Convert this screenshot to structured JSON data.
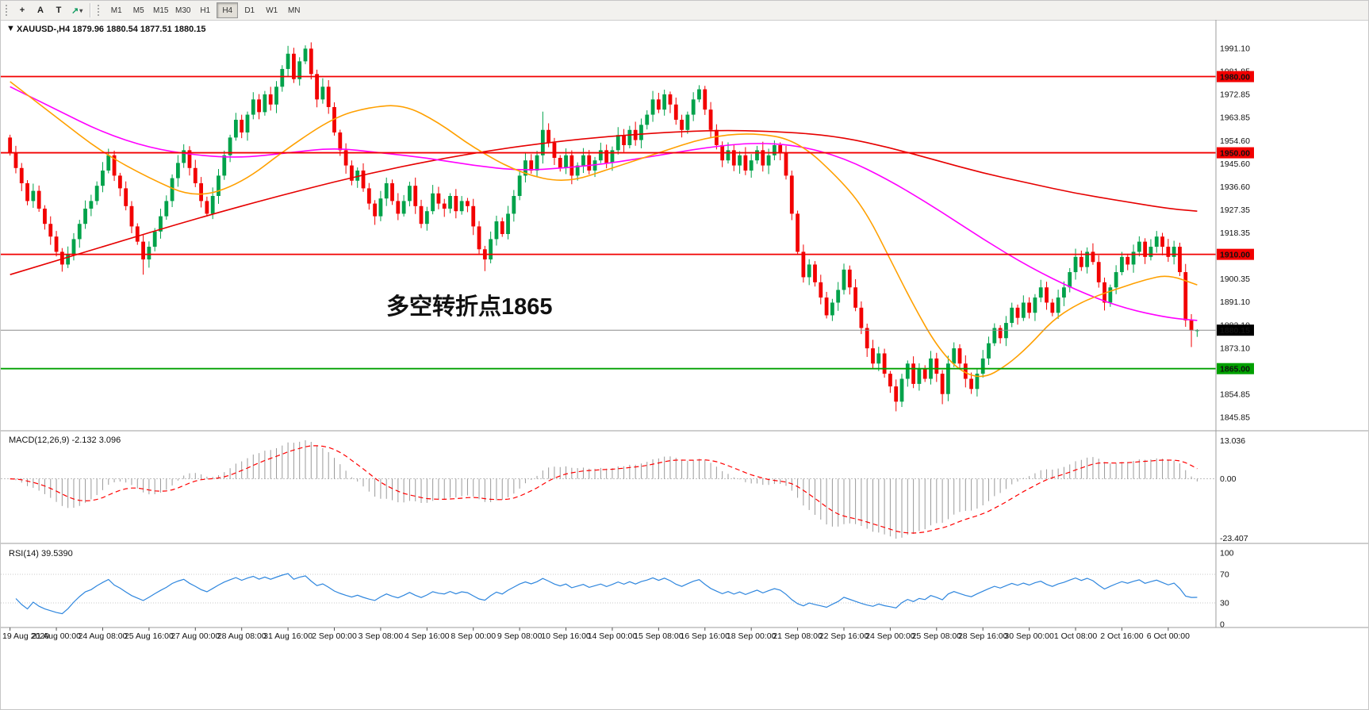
{
  "toolbar": {
    "buttons": [
      {
        "glyph": "+"
      },
      {
        "glyph": "A"
      },
      {
        "glyph": "T"
      },
      {
        "glyph": "↗"
      }
    ],
    "dropdown_caret": "▾",
    "timeframes": [
      {
        "label": "M1",
        "active": false
      },
      {
        "label": "M5",
        "active": false
      },
      {
        "label": "M15",
        "active": false
      },
      {
        "label": "M30",
        "active": false
      },
      {
        "label": "H1",
        "active": false
      },
      {
        "label": "H4",
        "active": true
      },
      {
        "label": "D1",
        "active": false
      },
      {
        "label": "W1",
        "active": false
      },
      {
        "label": "MN",
        "active": false
      }
    ]
  },
  "chart": {
    "collapse_arrow": "▼",
    "quote_line": "XAUUSD-,H4 1879.96 1880.54 1877.51 1880.15",
    "annotation": {
      "text": "多空转折点1865",
      "color": "#ff0000"
    },
    "levels": [
      {
        "price": 1980.0,
        "label": "1980.00",
        "color": "#f20000"
      },
      {
        "price": 1950.0,
        "label": "1950.00",
        "color": "#f20000"
      },
      {
        "price": 1910.0,
        "label": "1910.00",
        "color": "#f20000"
      },
      {
        "price": 1865.0,
        "label": "1865.00",
        "color": "#00a000"
      }
    ],
    "bid_line": {
      "price": 1880.15,
      "label": "1880.15",
      "line_color": "#8c8c8c",
      "tag_bg": "#000000",
      "tag_fg": "#ffffff"
    },
    "price_axis": {
      "ticks": [
        "1991.10",
        "1981.85",
        "1972.85",
        "1963.85",
        "1954.60",
        "1945.60",
        "1936.60",
        "1927.35",
        "1918.35",
        "1909.10",
        "1900.35",
        "1891.10",
        "1882.10",
        "1873.10",
        "1863.85",
        "1854.85",
        "1845.85"
      ]
    },
    "time_axis": {
      "labels": [
        "19 Aug 2020",
        "21 Aug 00:00",
        "24 Aug 08:00",
        "25 Aug 16:00",
        "27 Aug 00:00",
        "28 Aug 08:00",
        "31 Aug 16:00",
        "2 Sep 00:00",
        "3 Sep 08:00",
        "4 Sep 16:00",
        "8 Sep 00:00",
        "9 Sep 08:00",
        "10 Sep 16:00",
        "14 Sep 00:00",
        "15 Sep 08:00",
        "16 Sep 16:00",
        "18 Sep 00:00",
        "21 Sep 08:00",
        "22 Sep 16:00",
        "24 Sep 00:00",
        "25 Sep 08:00",
        "28 Sep 16:00",
        "30 Sep 00:00",
        "1 Oct 08:00",
        "2 Oct 16:00",
        "6 Oct 00:00"
      ]
    },
    "colors": {
      "up": "#00a24a",
      "down": "#f20000",
      "bid": "#8c8c8c"
    }
  },
  "chart_data": {
    "type": "candlestick",
    "symbol": "XAUUSD-",
    "timeframe": "H4",
    "ohlc_current": {
      "open": 1879.96,
      "high": 1880.54,
      "low": 1877.51,
      "close": 1880.15
    },
    "candles_per_time_label": 8,
    "first_open": 1956,
    "closes": [
      1950,
      1944,
      1938,
      1931,
      1935,
      1928,
      1922,
      1917,
      1911,
      1906,
      1910,
      1916,
      1922,
      1928,
      1931,
      1937,
      1943,
      1949,
      1941,
      1936,
      1929,
      1921,
      1915,
      1908,
      1913,
      1919,
      1925,
      1931,
      1940,
      1946,
      1951,
      1944,
      1938,
      1931,
      1926,
      1933,
      1941,
      1949,
      1956,
      1963,
      1958,
      1965,
      1971,
      1966,
      1973,
      1969,
      1976,
      1983,
      1989,
      1979,
      1986,
      1991,
      1981,
      1971,
      1976,
      1968,
      1958,
      1951,
      1945,
      1939,
      1943,
      1936,
      1930,
      1925,
      1932,
      1938,
      1931,
      1926,
      1931,
      1937,
      1929,
      1922,
      1927,
      1934,
      1930,
      1928,
      1933,
      1927,
      1931,
      1929,
      1921,
      1912,
      1908,
      1916,
      1923,
      1918,
      1926,
      1933,
      1941,
      1947,
      1943,
      1949,
      1959,
      1954,
      1948,
      1944,
      1949,
      1941,
      1945,
      1949,
      1943,
      1947,
      1951,
      1946,
      1951,
      1957,
      1953,
      1959,
      1955,
      1961,
      1965,
      1971,
      1967,
      1973,
      1969,
      1963,
      1959,
      1965,
      1971,
      1975,
      1967,
      1959,
      1953,
      1947,
      1951,
      1945,
      1949,
      1943,
      1947,
      1951,
      1945,
      1949,
      1953,
      1950,
      1941,
      1926,
      1911,
      1901,
      1906,
      1899,
      1893,
      1886,
      1891,
      1896,
      1904,
      1897,
      1889,
      1881,
      1873,
      1867,
      1871,
      1863,
      1858,
      1852,
      1861,
      1867,
      1859,
      1865,
      1861,
      1869,
      1863,
      1855,
      1867,
      1873,
      1867,
      1861,
      1857,
      1863,
      1869,
      1875,
      1881,
      1877,
      1883,
      1889,
      1885,
      1891,
      1887,
      1893,
      1897,
      1891,
      1887,
      1893,
      1897,
      1903,
      1909,
      1905,
      1911,
      1907,
      1899,
      1891,
      1897,
      1903,
      1909,
      1906,
      1911,
      1915,
      1909,
      1913,
      1917,
      1913,
      1909,
      1913,
      1903,
      1884,
      1880,
      1880.15
    ],
    "wicks": {
      "23": {
        "l": 1902
      },
      "51": {
        "h": 1992.3
      },
      "82": {
        "l": 1903.4
      },
      "92": {
        "h": 1966.2
      },
      "119": {
        "h": 1976.6
      },
      "153": {
        "l": 1848.2
      },
      "161": {
        "l": 1851
      },
      "204": {
        "l": 1873.5
      }
    },
    "moving_averages": [
      {
        "name": "ma-slow-red",
        "color": "#e60000",
        "points": [
          [
            0,
            1902
          ],
          [
            16,
            1913
          ],
          [
            32,
            1924
          ],
          [
            48,
            1934
          ],
          [
            64,
            1943
          ],
          [
            80,
            1950
          ],
          [
            96,
            1955
          ],
          [
            112,
            1958
          ],
          [
            124,
            1959
          ],
          [
            136,
            1958
          ],
          [
            144,
            1956
          ],
          [
            152,
            1952
          ],
          [
            160,
            1947
          ],
          [
            168,
            1942
          ],
          [
            176,
            1938
          ],
          [
            184,
            1934
          ],
          [
            192,
            1931
          ],
          [
            200,
            1928
          ],
          [
            205,
            1927
          ]
        ]
      },
      {
        "name": "ma-mid-magenta",
        "color": "#ff00ff",
        "points": [
          [
            0,
            1976
          ],
          [
            8,
            1967
          ],
          [
            16,
            1958
          ],
          [
            24,
            1952
          ],
          [
            32,
            1949
          ],
          [
            40,
            1948
          ],
          [
            48,
            1950
          ],
          [
            56,
            1952
          ],
          [
            64,
            1950
          ],
          [
            72,
            1948
          ],
          [
            80,
            1945
          ],
          [
            88,
            1943
          ],
          [
            96,
            1944
          ],
          [
            104,
            1946
          ],
          [
            112,
            1949
          ],
          [
            120,
            1952
          ],
          [
            128,
            1954
          ],
          [
            136,
            1953
          ],
          [
            144,
            1948
          ],
          [
            152,
            1939
          ],
          [
            160,
            1928
          ],
          [
            168,
            1916
          ],
          [
            176,
            1905
          ],
          [
            184,
            1896
          ],
          [
            192,
            1889
          ],
          [
            200,
            1885
          ],
          [
            205,
            1884
          ]
        ]
      },
      {
        "name": "ma-fast-orange",
        "color": "#ffa000",
        "points": [
          [
            0,
            1978
          ],
          [
            8,
            1964
          ],
          [
            16,
            1950
          ],
          [
            24,
            1940
          ],
          [
            32,
            1932
          ],
          [
            40,
            1938
          ],
          [
            48,
            1952
          ],
          [
            56,
            1964
          ],
          [
            62,
            1968
          ],
          [
            68,
            1969
          ],
          [
            74,
            1962
          ],
          [
            80,
            1952
          ],
          [
            88,
            1942
          ],
          [
            96,
            1938
          ],
          [
            104,
            1944
          ],
          [
            112,
            1950
          ],
          [
            120,
            1956
          ],
          [
            128,
            1958
          ],
          [
            136,
            1955
          ],
          [
            144,
            1938
          ],
          [
            148,
            1926
          ],
          [
            152,
            1908
          ],
          [
            156,
            1890
          ],
          [
            160,
            1874
          ],
          [
            164,
            1864
          ],
          [
            168,
            1861
          ],
          [
            172,
            1866
          ],
          [
            176,
            1874
          ],
          [
            180,
            1884
          ],
          [
            184,
            1890
          ],
          [
            188,
            1894
          ],
          [
            192,
            1897
          ],
          [
            196,
            1900
          ],
          [
            200,
            1902
          ],
          [
            205,
            1898
          ]
        ]
      }
    ],
    "indicators": [
      {
        "name": "MACD",
        "label": "MACD(12,26,9) -2.132 3.096",
        "fast": 12,
        "slow": 26,
        "signal": 9,
        "axis_labels": [
          "13.036",
          "0.00",
          "-23.407"
        ],
        "histogram_color": "#9a9a9a",
        "signal_color": "#ff0000"
      },
      {
        "name": "RSI",
        "label": "RSI(14) 39.5390",
        "period": 14,
        "current": 39.539,
        "axis_labels": [
          {
            "t": "100",
            "v": 100
          },
          {
            "t": "70",
            "v": 70
          },
          {
            "t": "30",
            "v": 30
          },
          {
            "t": "0",
            "v": 0
          }
        ],
        "level_lines": [
          70,
          30
        ],
        "line_color": "#2e86de"
      }
    ]
  }
}
